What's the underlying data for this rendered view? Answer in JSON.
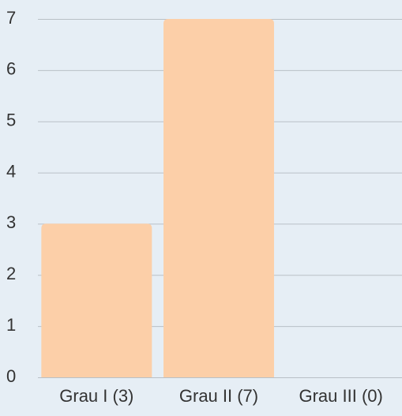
{
  "chart_data": {
    "type": "bar",
    "categories": [
      "Grau I (3)",
      "Grau II (7)",
      "Grau III (0)"
    ],
    "values": [
      3,
      7,
      0
    ],
    "color": "#fccfa8",
    "ylim": [
      0,
      7
    ],
    "yticks": [
      0,
      1,
      2,
      3,
      4,
      5,
      6,
      7
    ],
    "grid": true
  }
}
